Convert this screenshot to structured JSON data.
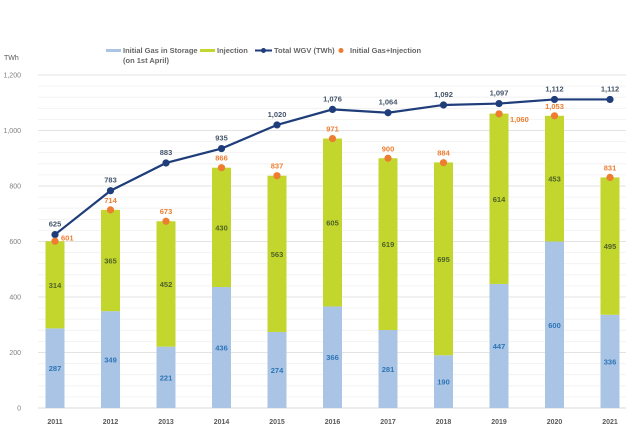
{
  "chart_data": {
    "type": "bar",
    "subtype": "stacked-bar-with-line",
    "title": "",
    "xlabel": "",
    "ylabel": "TWh",
    "ylim": [
      0,
      1200
    ],
    "yticks": [
      0,
      200,
      400,
      600,
      800,
      1000,
      1200
    ],
    "ytick_labels": [
      "0",
      "200",
      "400",
      "600",
      "800",
      "1,000",
      "1,200"
    ],
    "grid": true,
    "minor_grid_step": 40,
    "legend_position": "top",
    "categories": [
      "2011",
      "2012",
      "2013",
      "2014",
      "2015",
      "2016",
      "2017",
      "2018",
      "2019",
      "2020",
      "2021"
    ],
    "series": [
      {
        "name": "Initial Gas in Storage (on 1st April)",
        "legend_lines": [
          "Initial Gas in Storage",
          "(on 1st April)"
        ],
        "kind": "bar",
        "color": "#a9c4e4",
        "label_color": "#2e75b6",
        "values": [
          287,
          349,
          221,
          436,
          274,
          366,
          281,
          190,
          447,
          600,
          336
        ]
      },
      {
        "name": "Injection",
        "legend_lines": [
          "Injection"
        ],
        "kind": "bar",
        "color": "#c3d62e",
        "label_color": "#4f6228",
        "values": [
          314,
          365,
          452,
          430,
          563,
          605,
          619,
          695,
          614,
          453,
          495
        ]
      },
      {
        "name": "Total WGV (TWh)",
        "legend_lines": [
          "Total WGV (TWh)"
        ],
        "kind": "line",
        "color": "#1f3d7a",
        "label_color": "#44546a",
        "values": [
          625,
          783,
          883,
          935,
          1020,
          1076,
          1064,
          1092,
          1097,
          1112,
          1112
        ],
        "labels": [
          "625",
          "783",
          "883",
          "935",
          "1,020",
          "1,076",
          "1,064",
          "1,092",
          "1,097",
          "1,112",
          "1,112"
        ]
      },
      {
        "name": "Initial Gas+Injection",
        "legend_lines": [
          "Initial Gas+Injection"
        ],
        "kind": "scatter",
        "color": "#ed7d31",
        "label_color": "#ed7d31",
        "values": [
          601,
          714,
          673,
          866,
          837,
          971,
          900,
          884,
          1060,
          1053,
          831
        ],
        "labels": [
          "601",
          "714",
          "673",
          "866",
          "837",
          "971",
          "900",
          "884",
          "1,060",
          "1,053",
          "831"
        ]
      }
    ]
  }
}
